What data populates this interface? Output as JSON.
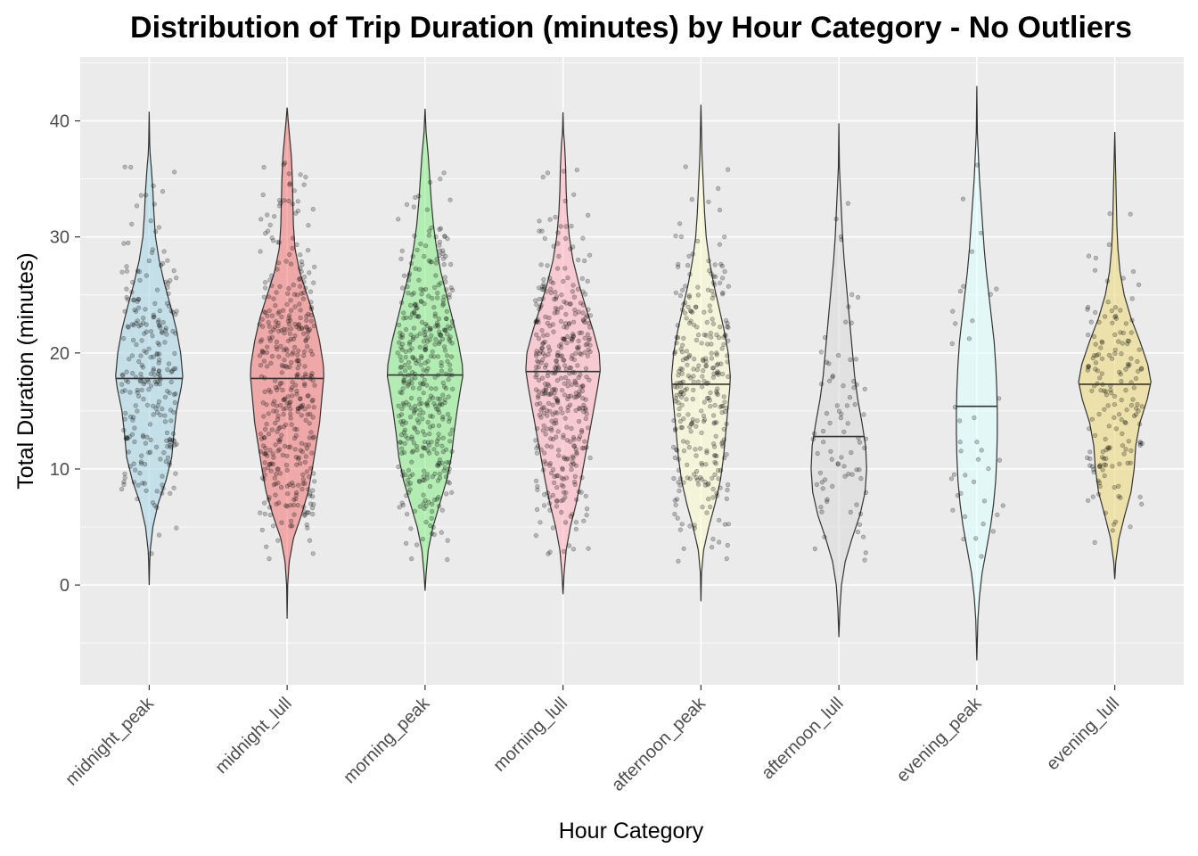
{
  "chart_data": {
    "type": "violin",
    "title": "Distribution of Trip Duration (minutes) by Hour Category - No Outliers",
    "xlabel": "Hour Category",
    "ylabel": "Total Duration (minutes)",
    "ylim": [
      -8.6,
      45.5
    ],
    "y_ticks": [
      0,
      10,
      20,
      30,
      40
    ],
    "y_tick_labels": [
      "0",
      "10",
      "20",
      "30",
      "40"
    ],
    "grid": true,
    "legend": "none",
    "categories": [
      "midnight_peak",
      "midnight_lull",
      "morning_peak",
      "morning_lull",
      "afternoon_peak",
      "afternoon_lull",
      "evening_peak",
      "evening_lull"
    ],
    "series": [
      {
        "category": "midnight_peak",
        "color": "#add8e6",
        "median": 17.8,
        "approx_points": 260,
        "ymin": 0.0,
        "ymax": 40.8,
        "profile": [
          [
            0.0,
            0.0
          ],
          [
            2.0,
            0.01
          ],
          [
            3.0,
            0.02
          ],
          [
            5.0,
            0.07
          ],
          [
            7.0,
            0.17
          ],
          [
            9.0,
            0.32
          ],
          [
            11.0,
            0.43
          ],
          [
            13.0,
            0.47
          ],
          [
            15.0,
            0.52
          ],
          [
            17.0,
            0.61
          ],
          [
            18.0,
            0.64
          ],
          [
            20.0,
            0.6
          ],
          [
            22.0,
            0.52
          ],
          [
            24.0,
            0.41
          ],
          [
            26.0,
            0.29
          ],
          [
            28.0,
            0.19
          ],
          [
            30.0,
            0.12
          ],
          [
            32.0,
            0.09
          ],
          [
            34.0,
            0.07
          ],
          [
            36.0,
            0.04
          ],
          [
            37.0,
            0.02
          ],
          [
            38.0,
            0.01
          ],
          [
            40.8,
            0.0
          ]
        ]
      },
      {
        "category": "midnight_lull",
        "color": "#f08080",
        "median": 17.8,
        "approx_points": 420,
        "ymin": -2.9,
        "ymax": 41.2,
        "profile": [
          [
            -2.9,
            0.0
          ],
          [
            0.0,
            0.01
          ],
          [
            2.0,
            0.04
          ],
          [
            4.0,
            0.12
          ],
          [
            6.0,
            0.27
          ],
          [
            8.0,
            0.4
          ],
          [
            10.0,
            0.48
          ],
          [
            12.0,
            0.55
          ],
          [
            14.0,
            0.62
          ],
          [
            16.0,
            0.66
          ],
          [
            18.0,
            0.7
          ],
          [
            19.0,
            0.69
          ],
          [
            21.0,
            0.62
          ],
          [
            23.0,
            0.52
          ],
          [
            25.0,
            0.38
          ],
          [
            27.0,
            0.24
          ],
          [
            29.0,
            0.15
          ],
          [
            31.0,
            0.12
          ],
          [
            33.0,
            0.11
          ],
          [
            35.0,
            0.1
          ],
          [
            37.0,
            0.08
          ],
          [
            38.0,
            0.06
          ],
          [
            40.0,
            0.02
          ],
          [
            41.2,
            0.0
          ]
        ]
      },
      {
        "category": "morning_peak",
        "color": "#90ee90",
        "median": 18.1,
        "approx_points": 430,
        "ymin": -0.5,
        "ymax": 41.1,
        "profile": [
          [
            -0.5,
            0.0
          ],
          [
            1.0,
            0.02
          ],
          [
            3.0,
            0.06
          ],
          [
            5.0,
            0.15
          ],
          [
            7.0,
            0.28
          ],
          [
            9.0,
            0.41
          ],
          [
            11.0,
            0.5
          ],
          [
            13.0,
            0.55
          ],
          [
            15.0,
            0.61
          ],
          [
            17.0,
            0.68
          ],
          [
            18.0,
            0.72
          ],
          [
            19.0,
            0.71
          ],
          [
            21.0,
            0.63
          ],
          [
            23.0,
            0.52
          ],
          [
            25.0,
            0.41
          ],
          [
            27.0,
            0.3
          ],
          [
            29.0,
            0.22
          ],
          [
            31.0,
            0.16
          ],
          [
            33.0,
            0.12
          ],
          [
            35.0,
            0.09
          ],
          [
            37.0,
            0.06
          ],
          [
            38.0,
            0.04
          ],
          [
            39.0,
            0.02
          ],
          [
            41.1,
            0.0
          ]
        ]
      },
      {
        "category": "morning_lull",
        "color": "#ffb6c1",
        "median": 18.4,
        "approx_points": 420,
        "ymin": -0.8,
        "ymax": 40.8,
        "profile": [
          [
            -0.8,
            0.0
          ],
          [
            1.0,
            0.02
          ],
          [
            3.0,
            0.06
          ],
          [
            5.0,
            0.14
          ],
          [
            7.0,
            0.25
          ],
          [
            9.0,
            0.34
          ],
          [
            11.0,
            0.42
          ],
          [
            13.0,
            0.5
          ],
          [
            15.0,
            0.58
          ],
          [
            17.0,
            0.66
          ],
          [
            18.5,
            0.71
          ],
          [
            20.0,
            0.69
          ],
          [
            22.0,
            0.57
          ],
          [
            24.0,
            0.43
          ],
          [
            26.0,
            0.3
          ],
          [
            28.0,
            0.19
          ],
          [
            30.0,
            0.12
          ],
          [
            32.0,
            0.08
          ],
          [
            34.0,
            0.06
          ],
          [
            36.0,
            0.05
          ],
          [
            38.0,
            0.03
          ],
          [
            39.0,
            0.01
          ],
          [
            40.8,
            0.0
          ]
        ]
      },
      {
        "category": "afternoon_peak",
        "color": "#fafad2",
        "median": 17.3,
        "approx_points": 310,
        "ymin": -1.4,
        "ymax": 41.4,
        "profile": [
          [
            -1.4,
            0.0
          ],
          [
            1.0,
            0.01
          ],
          [
            3.0,
            0.05
          ],
          [
            5.0,
            0.15
          ],
          [
            7.0,
            0.27
          ],
          [
            9.0,
            0.37
          ],
          [
            11.0,
            0.43
          ],
          [
            13.0,
            0.47
          ],
          [
            15.0,
            0.51
          ],
          [
            17.0,
            0.55
          ],
          [
            18.0,
            0.56
          ],
          [
            20.0,
            0.52
          ],
          [
            22.0,
            0.44
          ],
          [
            24.0,
            0.34
          ],
          [
            26.0,
            0.24
          ],
          [
            28.0,
            0.16
          ],
          [
            30.0,
            0.1
          ],
          [
            32.0,
            0.07
          ],
          [
            34.0,
            0.05
          ],
          [
            36.0,
            0.03
          ],
          [
            37.0,
            0.02
          ],
          [
            41.4,
            0.0
          ]
        ]
      },
      {
        "category": "afternoon_lull",
        "color": "#dcdcdc",
        "median": 12.8,
        "approx_points": 80,
        "ymin": -4.5,
        "ymax": 39.8,
        "profile": [
          [
            -4.5,
            0.0
          ],
          [
            -2.0,
            0.02
          ],
          [
            0.0,
            0.05
          ],
          [
            2.0,
            0.12
          ],
          [
            4.0,
            0.25
          ],
          [
            6.0,
            0.4
          ],
          [
            8.0,
            0.5
          ],
          [
            10.0,
            0.53
          ],
          [
            12.0,
            0.51
          ],
          [
            14.0,
            0.44
          ],
          [
            16.0,
            0.36
          ],
          [
            18.0,
            0.3
          ],
          [
            20.0,
            0.26
          ],
          [
            22.0,
            0.22
          ],
          [
            24.0,
            0.18
          ],
          [
            26.0,
            0.14
          ],
          [
            28.0,
            0.1
          ],
          [
            30.0,
            0.07
          ],
          [
            32.0,
            0.05
          ],
          [
            34.0,
            0.03
          ],
          [
            36.0,
            0.01
          ],
          [
            39.8,
            0.0
          ]
        ]
      },
      {
        "category": "evening_peak",
        "color": "#e0ffff",
        "median": 15.4,
        "approx_points": 40,
        "ymin": -6.5,
        "ymax": 43.0,
        "profile": [
          [
            -6.5,
            0.0
          ],
          [
            -3.0,
            0.02
          ],
          [
            -1.0,
            0.05
          ],
          [
            1.0,
            0.1
          ],
          [
            3.0,
            0.18
          ],
          [
            5.0,
            0.26
          ],
          [
            7.0,
            0.32
          ],
          [
            9.0,
            0.36
          ],
          [
            11.0,
            0.38
          ],
          [
            13.0,
            0.39
          ],
          [
            15.0,
            0.39
          ],
          [
            17.0,
            0.38
          ],
          [
            19.0,
            0.36
          ],
          [
            21.0,
            0.33
          ],
          [
            23.0,
            0.28
          ],
          [
            25.0,
            0.23
          ],
          [
            27.0,
            0.18
          ],
          [
            29.0,
            0.14
          ],
          [
            31.0,
            0.11
          ],
          [
            33.0,
            0.08
          ],
          [
            35.0,
            0.05
          ],
          [
            37.0,
            0.03
          ],
          [
            39.0,
            0.01
          ],
          [
            43.0,
            0.0
          ]
        ]
      },
      {
        "category": "evening_lull",
        "color": "#eedc82",
        "median": 17.3,
        "approx_points": 170,
        "ymin": 0.5,
        "ymax": 39.1,
        "profile": [
          [
            0.5,
            0.0
          ],
          [
            2.0,
            0.02
          ],
          [
            4.0,
            0.08
          ],
          [
            6.0,
            0.19
          ],
          [
            8.0,
            0.31
          ],
          [
            10.0,
            0.37
          ],
          [
            12.0,
            0.4
          ],
          [
            14.0,
            0.48
          ],
          [
            16.0,
            0.62
          ],
          [
            17.5,
            0.69
          ],
          [
            19.0,
            0.63
          ],
          [
            21.0,
            0.48
          ],
          [
            23.0,
            0.31
          ],
          [
            25.0,
            0.18
          ],
          [
            27.0,
            0.1
          ],
          [
            29.0,
            0.06
          ],
          [
            31.0,
            0.04
          ],
          [
            33.0,
            0.03
          ],
          [
            35.0,
            0.02
          ],
          [
            37.0,
            0.01
          ],
          [
            39.1,
            0.0
          ]
        ]
      }
    ]
  }
}
